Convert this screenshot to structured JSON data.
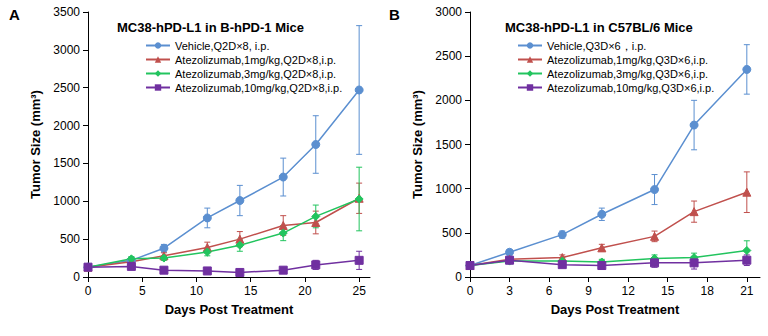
{
  "chart_data": [
    {
      "type": "line",
      "label": "A",
      "title": "MC38-hPD-L1 in B-hPD-1 Mice",
      "x_label": "Days Post Treatment",
      "y_label": "Tumor Size (mm³)",
      "xlim": [
        0,
        26
      ],
      "xticks": [
        0,
        5,
        10,
        15,
        20,
        25
      ],
      "ylim": [
        0,
        3500
      ],
      "yticks": [
        0,
        500,
        1000,
        1500,
        2000,
        2500,
        3000,
        3500
      ],
      "grid": false,
      "x": [
        0,
        4,
        7,
        11,
        14,
        18,
        21,
        25
      ],
      "series": [
        {
          "name": "Vehicle,Q2D×8, i.p.",
          "color": "#5b8fd0",
          "marker": "circle",
          "values": [
            130,
            220,
            380,
            780,
            1010,
            1320,
            1750,
            2470
          ],
          "errors": [
            20,
            30,
            50,
            130,
            200,
            250,
            380,
            850
          ]
        },
        {
          "name": "Atezolizumab,1mg/kg,Q2D×8,i.p.",
          "color": "#c0504d",
          "marker": "triangle",
          "values": [
            130,
            200,
            280,
            390,
            500,
            680,
            720,
            1040
          ],
          "errors": [
            20,
            30,
            40,
            70,
            100,
            130,
            150,
            200
          ]
        },
        {
          "name": "Atezolizumab,3mg/kg,Q2D×8,i.p.",
          "color": "#22c45e",
          "marker": "diamond",
          "values": [
            130,
            240,
            250,
            330,
            420,
            580,
            800,
            1030
          ],
          "errors": [
            20,
            30,
            30,
            50,
            80,
            100,
            150,
            420
          ]
        },
        {
          "name": "Atezolizumab,10mg/kg,Q2D×8,i.p.",
          "color": "#7030a0",
          "marker": "square",
          "values": [
            130,
            140,
            90,
            80,
            60,
            90,
            160,
            220
          ],
          "errors": [
            20,
            30,
            20,
            30,
            20,
            30,
            60,
            120
          ]
        }
      ]
    },
    {
      "type": "line",
      "label": "B",
      "title": "MC38-hPD-L1 in C57BL/6 Mice",
      "x_label": "Days Post Treatment",
      "y_label": "Tumor Size (mm³)",
      "xlim": [
        0,
        22
      ],
      "xticks": [
        0,
        3,
        6,
        9,
        12,
        15,
        18,
        21
      ],
      "ylim": [
        0,
        3000
      ],
      "yticks": [
        0,
        500,
        1000,
        1500,
        2000,
        2500,
        3000
      ],
      "grid": false,
      "x": [
        0,
        3,
        7,
        10,
        14,
        17,
        21
      ],
      "series": [
        {
          "name": "Vehicle,Q3D×6，i.p.",
          "color": "#5b8fd0",
          "marker": "circle",
          "values": [
            130,
            280,
            480,
            710,
            990,
            1720,
            2350
          ],
          "errors": [
            20,
            30,
            40,
            70,
            170,
            280,
            280
          ]
        },
        {
          "name": "Atezolizumab,1mg/kg,Q3D×6,i.p.",
          "color": "#c0504d",
          "marker": "triangle",
          "values": [
            130,
            200,
            220,
            330,
            460,
            740,
            960
          ],
          "errors": [
            20,
            30,
            30,
            40,
            60,
            120,
            230
          ]
        },
        {
          "name": "Atezolizumab,3mg/kg,Q3D×6,i.p.",
          "color": "#22c45e",
          "marker": "diamond",
          "values": [
            130,
            180,
            180,
            170,
            210,
            220,
            300
          ],
          "errors": [
            20,
            30,
            40,
            30,
            40,
            50,
            110
          ]
        },
        {
          "name": "Atezolizumab,10mg/kg,Q3D×6,i.p.",
          "color": "#7030a0",
          "marker": "square",
          "values": [
            130,
            190,
            140,
            130,
            160,
            160,
            190
          ],
          "errors": [
            20,
            30,
            30,
            40,
            50,
            70,
            60
          ]
        }
      ]
    }
  ]
}
